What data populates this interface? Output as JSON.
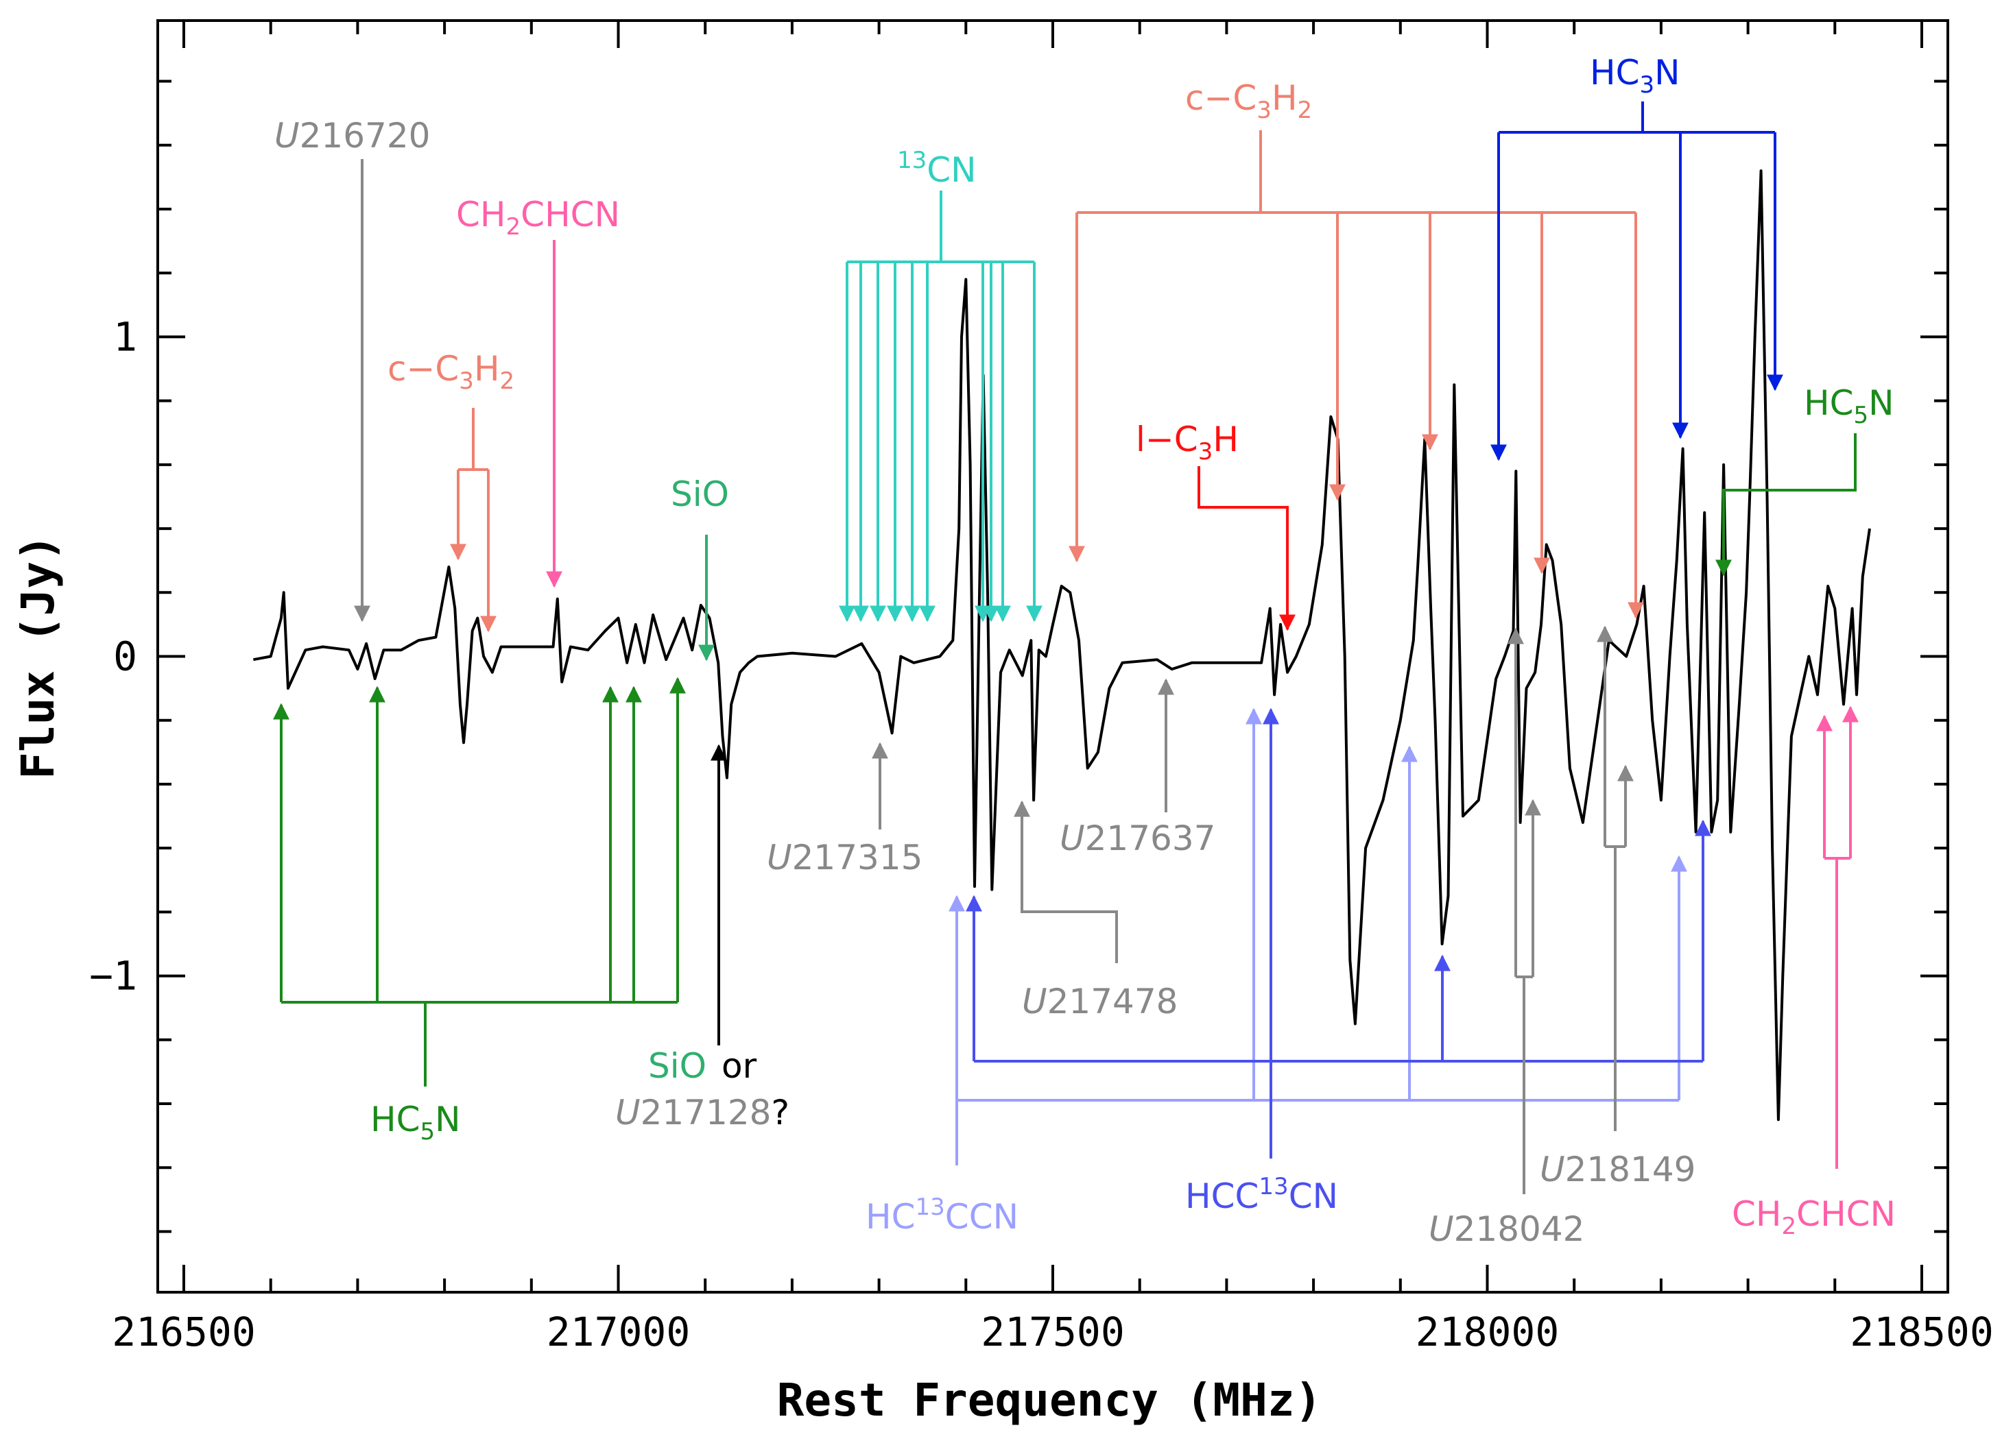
{
  "chart_data": {
    "type": "line",
    "title": "",
    "xlabel": "Rest Frequency (MHz)",
    "ylabel": "Flux (Jy)",
    "xlim": [
      216470,
      218530
    ],
    "ylim": [
      -1.99,
      1.99
    ],
    "xticks": [
      216500,
      217000,
      217500,
      218000,
      218500
    ],
    "xtick_labels": [
      "216500",
      "217000",
      "217500",
      "218000",
      "218500"
    ],
    "yticks": [
      -1,
      0,
      1
    ],
    "ytick_labels": [
      "−1",
      "0",
      "1"
    ],
    "series": [
      {
        "name": "spectrum",
        "x": [
          216580,
          216600,
          216612,
          216615,
          216620,
          216640,
          216660,
          216690,
          216700,
          216710,
          216720,
          216730,
          216750,
          216770,
          216790,
          216805,
          216812,
          216818,
          216822,
          216826,
          216832,
          216838,
          216845,
          216855,
          216865,
          216880,
          216900,
          216925,
          216930,
          216935,
          216945,
          216965,
          216985,
          217000,
          217010,
          217020,
          217030,
          217040,
          217055,
          217075,
          217085,
          217095,
          217105,
          217115,
          217120,
          217125,
          217130,
          217140,
          217150,
          217160,
          217200,
          217250,
          217280,
          217300,
          217315,
          217325,
          217340,
          217370,
          217385,
          217392,
          217395,
          217400,
          217405,
          217410,
          217415,
          217420,
          217425,
          217430,
          217440,
          217450,
          217465,
          217475,
          217478,
          217484,
          217492,
          217500,
          217510,
          217520,
          217530,
          217540,
          217552,
          217565,
          217580,
          217620,
          217637,
          217660,
          217700,
          217740,
          217750,
          217755,
          217762,
          217770,
          217780,
          217795,
          217810,
          217820,
          217828,
          217836,
          217842,
          217848,
          217860,
          217880,
          217900,
          217915,
          217920,
          217928,
          217935,
          217940,
          217948,
          217955,
          217962,
          217972,
          217990,
          218010,
          218020,
          218030,
          218033,
          218038,
          218045,
          218055,
          218062,
          218068,
          218075,
          218085,
          218095,
          218110,
          218140,
          218160,
          218172,
          218180,
          218190,
          218200,
          218210,
          218218,
          218225,
          218230,
          218240,
          218250,
          218258,
          218265,
          218272,
          218280,
          218290,
          218298,
          218302,
          218308,
          218315,
          218322,
          218328,
          218335,
          218340,
          218350,
          218362,
          218370,
          218380,
          218392,
          218400,
          218410,
          218420,
          218425,
          218432,
          218440
        ],
        "values": [
          -0.01,
          0.0,
          0.12,
          0.2,
          -0.1,
          0.02,
          0.03,
          0.02,
          -0.04,
          0.04,
          -0.07,
          0.02,
          0.02,
          0.05,
          0.06,
          0.28,
          0.15,
          -0.15,
          -0.27,
          -0.15,
          0.08,
          0.12,
          0.0,
          -0.05,
          0.03,
          0.03,
          0.03,
          0.03,
          0.18,
          -0.08,
          0.03,
          0.02,
          0.08,
          0.12,
          -0.02,
          0.1,
          -0.02,
          0.13,
          -0.01,
          0.12,
          0.02,
          0.16,
          0.12,
          -0.02,
          -0.25,
          -0.38,
          -0.15,
          -0.05,
          -0.02,
          0.0,
          0.01,
          0.0,
          0.04,
          -0.05,
          -0.24,
          0.0,
          -0.02,
          0.0,
          0.05,
          0.4,
          1.0,
          1.18,
          0.6,
          -0.72,
          0.1,
          0.88,
          0.2,
          -0.73,
          -0.05,
          0.02,
          -0.06,
          0.05,
          -0.45,
          0.02,
          0.0,
          0.1,
          0.22,
          0.2,
          0.05,
          -0.35,
          -0.3,
          -0.1,
          -0.02,
          -0.01,
          -0.04,
          -0.02,
          -0.02,
          -0.02,
          0.15,
          -0.12,
          0.1,
          -0.05,
          0.0,
          0.1,
          0.35,
          0.75,
          0.68,
          0.0,
          -0.95,
          -1.15,
          -0.6,
          -0.45,
          -0.2,
          0.05,
          0.28,
          0.68,
          0.15,
          -0.2,
          -0.9,
          -0.75,
          0.85,
          -0.5,
          -0.45,
          -0.07,
          0.0,
          0.08,
          0.58,
          -0.52,
          -0.1,
          -0.05,
          0.1,
          0.35,
          0.3,
          0.1,
          -0.35,
          -0.52,
          0.05,
          0.0,
          0.1,
          0.22,
          -0.2,
          -0.45,
          0.0,
          0.3,
          0.65,
          0.1,
          -0.55,
          0.45,
          -0.55,
          -0.45,
          0.6,
          -0.55,
          -0.15,
          0.2,
          0.5,
          1.0,
          1.52,
          0.5,
          -0.6,
          -1.45,
          -1.0,
          -0.25,
          -0.1,
          0.0,
          -0.12,
          0.22,
          0.15,
          -0.15,
          0.15,
          -0.12,
          0.25,
          0.4
        ]
      }
    ],
    "annotations": [
      {
        "id": "u216720",
        "species_italic": "U",
        "species_rest": "216720",
        "color": "#888888"
      },
      {
        "id": "ch2chcn_top",
        "label": "CH2CHCN",
        "color": "#ff5fa8"
      },
      {
        "id": "cc3h2_left",
        "label": "c−C3H2",
        "color": "#f08070"
      },
      {
        "id": "sio_top",
        "label": "SiO",
        "color": "#2eaf6e"
      },
      {
        "id": "13cn",
        "label": "13CN",
        "color": "#30d0c0"
      },
      {
        "id": "cc3h2_right",
        "label": "c−C3H2",
        "color": "#f08070"
      },
      {
        "id": "hc3n",
        "label": "HC3N",
        "color": "#0020e0"
      },
      {
        "id": "lc3h",
        "label": "l−C3H",
        "color": "#ff1010"
      },
      {
        "id": "hc5n_right",
        "label": "HC5N",
        "color": "#1a8a1a"
      },
      {
        "id": "hc5n_left",
        "label": "HC5N",
        "color": "#1a8a1a"
      },
      {
        "id": "sio_or",
        "label": "SiO or",
        "color": "#2eaf6e"
      },
      {
        "id": "u217128",
        "label": "U217128?",
        "color": "#888888"
      },
      {
        "id": "u217315",
        "label": "U217315",
        "color": "#888888"
      },
      {
        "id": "u217478",
        "label": "U217478",
        "color": "#888888"
      },
      {
        "id": "u217637",
        "label": "U217637",
        "color": "#888888"
      },
      {
        "id": "hc13ccn",
        "label": "HC13CCN",
        "color": "#9aa0ff"
      },
      {
        "id": "hcc13cn",
        "label": "HCC13CN",
        "color": "#4a50f0"
      },
      {
        "id": "u218042",
        "label": "U218042",
        "color": "#888888"
      },
      {
        "id": "u218149",
        "label": "U218149",
        "color": "#888888"
      },
      {
        "id": "ch2chcn_bottom",
        "label": "CH2CHCN",
        "color": "#ff5fa8"
      }
    ]
  },
  "labels": {
    "xaxis": "Rest Frequency (MHz)",
    "yaxis": "Flux (Jy)",
    "u216720": "216720",
    "u217315": "217315",
    "u217478": "217478",
    "u217637": "217637",
    "u218042": "218042",
    "u218149": "218149",
    "u217128": "217128",
    "u_letter": "U",
    "question": "?",
    "sio": "SiO",
    "or": "or",
    "ch2chcn_a": "CH",
    "ch2chcn_sub": "2",
    "ch2chcn_b": "CHCN",
    "cc3h2_a": "c−C",
    "cc3h2_sub1": "3",
    "cc3h2_b": "H",
    "cc3h2_sub2": "2",
    "cn13_sup": "13",
    "cn13_b": "CN",
    "hc3n_a": "HC",
    "hc3n_sub": "3",
    "hc3n_b": "N",
    "lc3h_a": "l−C",
    "lc3h_sub": "3",
    "lc3h_b": "H",
    "hc5n_a": "HC",
    "hc5n_sub": "5",
    "hc5n_b": "N",
    "hc13ccn_a": "HC",
    "hc13ccn_sup": "13",
    "hc13ccn_b": "CCN",
    "hcc13cn_a": "HCC",
    "hcc13cn_sup": "13",
    "hcc13cn_b": "CN"
  }
}
